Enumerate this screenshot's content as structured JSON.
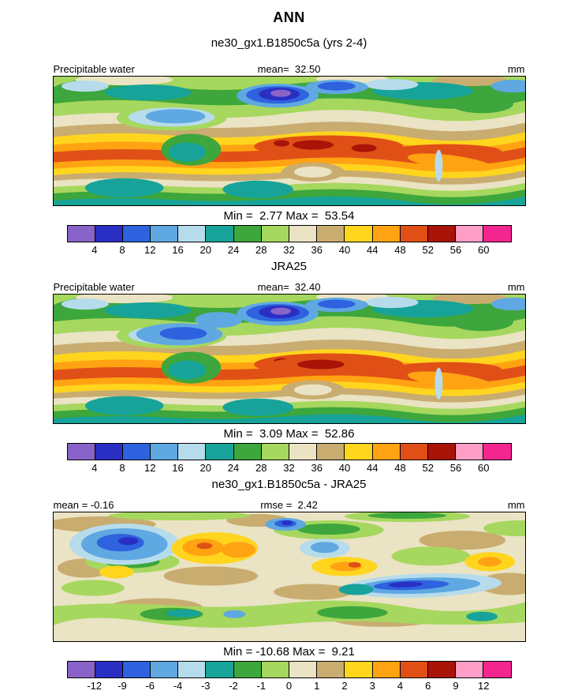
{
  "title": "ANN",
  "subtitles": {
    "model": "ne30_gx1.B1850c5a (yrs 2-4)",
    "obs": "JRA25",
    "diff": "ne30_gx1.B1850c5a - JRA25"
  },
  "panels": [
    {
      "left_label": "Precipitable water",
      "mid_label": "mean=  32.50",
      "right_label": "mm",
      "minmax": "Min =  2.77 Max =  53.54"
    },
    {
      "left_label": "Precipitable water",
      "mid_label": "mean=  32.40",
      "right_label": "mm",
      "minmax": "Min =  3.09 Max =  52.86"
    },
    {
      "left_label": "mean = -0.16",
      "mid_label": "rmse =  2.42",
      "right_label": "mm",
      "minmax": "Min = -10.68 Max =  9.21"
    }
  ],
  "colorbar_main": {
    "colors": [
      "#8A63C8",
      "#2A2FC4",
      "#2E62DE",
      "#5FA8E2",
      "#B6DCEC",
      "#17A399",
      "#3DA63C",
      "#A6D75E",
      "#EAE3C4",
      "#C9AC70",
      "#FFD51E",
      "#FFA313",
      "#E05016",
      "#A81408",
      "#FF9FC8",
      "#F3268F"
    ],
    "labels": [
      "4",
      "8",
      "12",
      "16",
      "20",
      "24",
      "28",
      "32",
      "36",
      "40",
      "44",
      "48",
      "52",
      "56",
      "60"
    ]
  },
  "colorbar_diff": {
    "colors": [
      "#8A63C8",
      "#2A2FC4",
      "#2E62DE",
      "#5FA8E2",
      "#B6DCEC",
      "#17A399",
      "#3DA63C",
      "#A6D75E",
      "#EAE3C4",
      "#C9AC70",
      "#FFD51E",
      "#FFA313",
      "#E05016",
      "#A81408",
      "#FF9FC8",
      "#F3268F"
    ],
    "labels": [
      "-12",
      "-9",
      "-6",
      "-4",
      "-3",
      "-2",
      "-1",
      "0",
      "1",
      "2",
      "3",
      "4",
      "6",
      "9",
      "12"
    ]
  },
  "chart_data": [
    {
      "type": "heatmap",
      "panel": "model",
      "season": "ANN",
      "title": "ne30_gx1.B1850c5a (yrs 2-4)",
      "variable": "Precipitable water",
      "units": "mm",
      "mean": 32.5,
      "min": 2.77,
      "max": 53.54,
      "contour_levels": [
        4,
        8,
        12,
        16,
        20,
        24,
        28,
        32,
        36,
        40,
        44,
        48,
        52,
        56,
        60
      ],
      "projection": "global lat-lon map, filled contours"
    },
    {
      "type": "heatmap",
      "panel": "observation",
      "season": "ANN",
      "title": "JRA25",
      "variable": "Precipitable water",
      "units": "mm",
      "mean": 32.4,
      "min": 3.09,
      "max": 52.86,
      "contour_levels": [
        4,
        8,
        12,
        16,
        20,
        24,
        28,
        32,
        36,
        40,
        44,
        48,
        52,
        56,
        60
      ],
      "projection": "global lat-lon map, filled contours"
    },
    {
      "type": "heatmap",
      "panel": "difference",
      "season": "ANN",
      "title": "ne30_gx1.B1850c5a - JRA25",
      "variable": "Precipitable water",
      "units": "mm",
      "mean": -0.16,
      "rmse": 2.42,
      "min": -10.68,
      "max": 9.21,
      "contour_levels": [
        -12,
        -9,
        -6,
        -4,
        -3,
        -2,
        -1,
        0,
        1,
        2,
        3,
        4,
        6,
        9,
        12
      ],
      "projection": "global lat-lon map, filled contours"
    }
  ]
}
